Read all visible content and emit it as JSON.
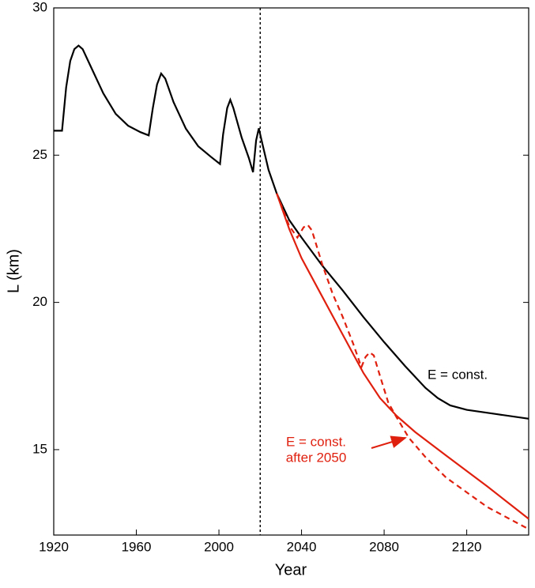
{
  "chart_data": {
    "type": "line",
    "x_label": "Year",
    "y_label": "L (km)",
    "xlim": [
      1920,
      2150
    ],
    "xticks": [
      1920,
      1960,
      2000,
      2040,
      2080,
      2120
    ],
    "ylim": [
      12.1,
      30
    ],
    "yticks": [
      15,
      20,
      25,
      30
    ],
    "vline": 2020,
    "series": [
      {
        "name": "E = const.",
        "color": "#000000",
        "dash": false,
        "x": [
          1920,
          1924,
          1926,
          1928,
          1930,
          1932,
          1934,
          1938,
          1944,
          1950,
          1956,
          1962,
          1966,
          1968,
          1970,
          1972,
          1974,
          1978,
          1984,
          1990,
          1996,
          2000.5,
          2002,
          2004,
          2005.5,
          2007,
          2011,
          2014.5,
          2016.5,
          2018,
          2019.3,
          2021,
          2024,
          2028,
          2034,
          2040,
          2050,
          2060,
          2070,
          2080,
          2090,
          2100,
          2106,
          2112,
          2120,
          2135,
          2150
        ],
        "values": [
          25.83,
          25.83,
          27.3,
          28.2,
          28.6,
          28.72,
          28.6,
          28.0,
          27.1,
          26.4,
          26.0,
          25.78,
          25.67,
          26.6,
          27.4,
          27.77,
          27.6,
          26.8,
          25.9,
          25.3,
          24.95,
          24.7,
          25.7,
          26.6,
          26.88,
          26.6,
          25.6,
          24.9,
          24.42,
          25.5,
          25.91,
          25.4,
          24.5,
          23.7,
          22.8,
          22.2,
          21.25,
          20.4,
          19.5,
          18.65,
          17.85,
          17.1,
          16.75,
          16.5,
          16.35,
          16.2,
          16.05
        ]
      },
      {
        "name": "E = const. after 2050",
        "color": "#e0200f",
        "dash": false,
        "x": [
          2028,
          2034,
          2040,
          2050,
          2060,
          2070,
          2078,
          2086,
          2095,
          2110,
          2130,
          2150
        ],
        "values": [
          23.7,
          22.5,
          21.5,
          20.2,
          18.9,
          17.6,
          16.75,
          16.15,
          15.6,
          14.8,
          13.75,
          12.65
        ]
      },
      {
        "color": "#e0200f",
        "dash": true,
        "x": [
          2028,
          2034,
          2038,
          2041,
          2043,
          2045,
          2050,
          2055,
          2060,
          2065,
          2069,
          2071,
          2073,
          2075,
          2078,
          2082,
          2086,
          2092,
          2100,
          2110,
          2130,
          2150
        ],
        "values": [
          23.7,
          22.6,
          22.2,
          22.55,
          22.63,
          22.45,
          21.3,
          20.3,
          19.5,
          18.6,
          17.8,
          18.15,
          18.3,
          18.2,
          17.5,
          16.6,
          16.1,
          15.4,
          14.75,
          14.05,
          13.05,
          12.3
        ]
      }
    ],
    "annotations": [
      {
        "text": "E = const.",
        "color": "#000000"
      },
      {
        "lines": [
          "E = const.",
          "after 2050"
        ],
        "color": "#e0200f"
      }
    ]
  }
}
